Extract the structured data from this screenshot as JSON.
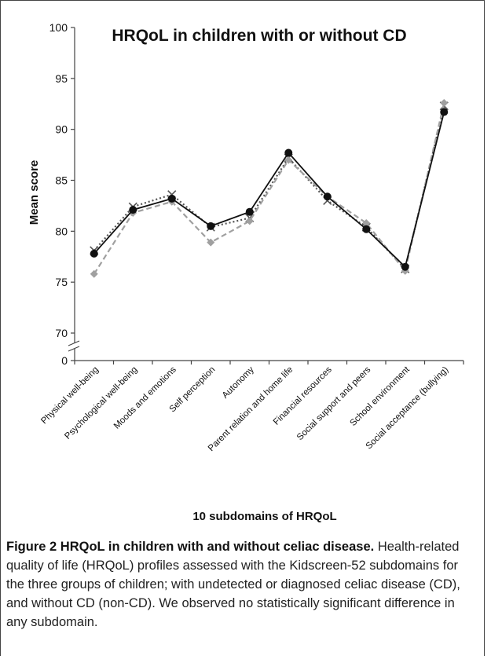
{
  "chart_data": {
    "type": "line",
    "title": "HRQoL in children with or without CD",
    "xlabel": "10 subdomains of HRQoL",
    "ylabel": "Mean score",
    "ylim": [
      70,
      100
    ],
    "ybreak_label": "0",
    "yticks": [
      "100",
      "95",
      "90",
      "85",
      "80",
      "75",
      "70"
    ],
    "categories": [
      "Physical well-being",
      "Psychological well-being",
      "Moods and emotions",
      "Self perception",
      "Autonomy",
      "Parent relation and home life",
      "Financial resources",
      "Social support and peers",
      "School environment",
      "Social acceptance (bullying)"
    ],
    "series": [
      {
        "marker": "x-cross",
        "line": "dotted",
        "color": "#555555",
        "values": [
          78.1,
          82.4,
          83.6,
          80.4,
          81.3,
          87.2,
          83.0,
          80.4,
          76.3,
          92.3
        ]
      },
      {
        "marker": "diamond",
        "line": "dashed",
        "color": "#a0a0a0",
        "values": [
          75.8,
          81.8,
          82.9,
          78.9,
          81.0,
          87.0,
          83.4,
          80.8,
          76.1,
          92.6
        ]
      },
      {
        "marker": "circle",
        "line": "solid",
        "color": "#111111",
        "values": [
          77.8,
          82.1,
          83.2,
          80.5,
          81.9,
          87.7,
          83.4,
          80.2,
          76.5,
          91.7
        ]
      }
    ],
    "grid": false,
    "legend": "none"
  },
  "caption": {
    "figure_label": "Figure 2",
    "figure_title": "HRQoL in children with and without celiac disease.",
    "text": "Health-related quality of life (HRQoL) profiles assessed with the Kidscreen-52 subdomains for the three groups of children; with undetected or diagnosed celiac disease (CD), and without CD (non-CD). We observed no statistically significant difference in any subdomain."
  }
}
